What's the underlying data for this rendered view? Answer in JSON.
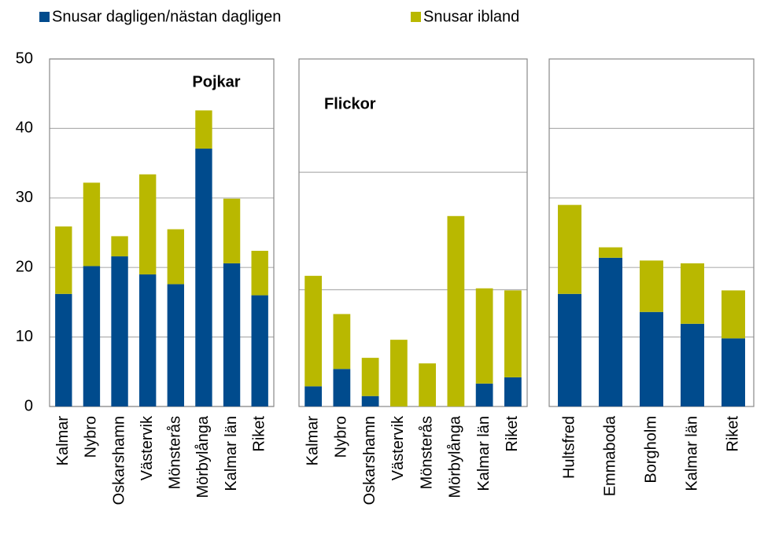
{
  "chart_data": [
    {
      "type": "stacked_bar",
      "title": "Pojkar",
      "categories": [
        "Kalmar",
        "Nybro",
        "Oskarshamn",
        "Västervik",
        "Mönsterås",
        "Mörbylånga",
        "Kalmar län",
        "Riket"
      ],
      "series": [
        {
          "name": "Snusar dagligen/nästan dagligen",
          "color": "#004b8d",
          "values": [
            16.2,
            20.2,
            21.6,
            19.0,
            17.6,
            37.1,
            20.6,
            16.0
          ]
        },
        {
          "name": "Snusar ibland",
          "color": "#b9b800",
          "values": [
            9.7,
            12.0,
            2.9,
            14.4,
            7.9,
            5.5,
            9.3,
            6.4
          ]
        }
      ],
      "ylim": [
        0,
        50
      ],
      "yticks": [
        0,
        10,
        20,
        30,
        40,
        50
      ],
      "grid": true
    },
    {
      "type": "stacked_bar",
      "title": "Flickor",
      "categories": [
        "Kalmar",
        "Nybro",
        "Oskarshamn",
        "Västervik",
        "Mönsterås",
        "Mörbylånga",
        "Kalmar län",
        "Riket"
      ],
      "series": [
        {
          "name": "Snusar dagligen/nästan dagligen",
          "color": "#004b8d",
          "values": [
            2.9,
            5.4,
            1.5,
            0,
            0,
            0,
            3.3,
            4.2
          ]
        },
        {
          "name": "Snusar ibland",
          "color": "#b9b800",
          "values": [
            15.9,
            7.9,
            5.5,
            9.6,
            6.2,
            27.4,
            13.7,
            12.5
          ]
        }
      ],
      "ylim": [
        0,
        50
      ],
      "yticks": [
        16.8,
        33.7
      ],
      "grid": true
    },
    {
      "type": "stacked_bar",
      "categories": [
        "Hultsfred",
        "Emmaboda",
        "Borgholm",
        "Kalmar län",
        "Riket"
      ],
      "series": [
        {
          "name": "Snusar dagligen/nästan dagligen",
          "color": "#004b8d",
          "values": [
            16.2,
            21.4,
            13.6,
            11.9,
            9.8
          ]
        },
        {
          "name": "Snusar ibland",
          "color": "#b9b800",
          "values": [
            12.8,
            1.5,
            7.4,
            8.7,
            6.9
          ]
        }
      ],
      "ylim": [
        0,
        50
      ],
      "yticks": [
        10,
        20,
        30,
        40
      ],
      "grid": true
    }
  ]
}
